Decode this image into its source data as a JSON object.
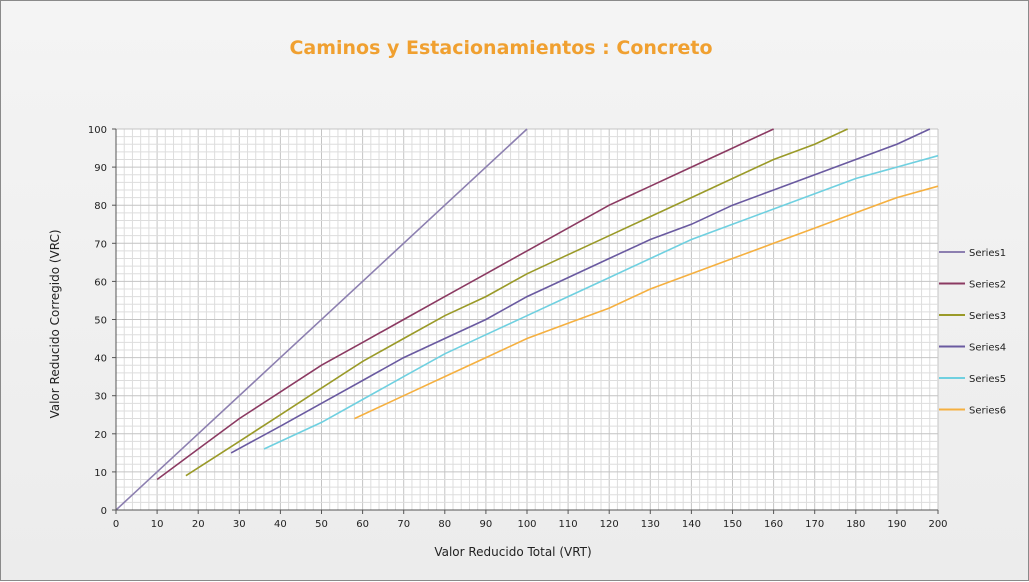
{
  "chart_data": {
    "type": "line",
    "title": "Caminos y Estacionamientos : Concreto",
    "xlabel": "Valor Reducido Total (VRT)",
    "ylabel": "Valor Reducido Corregido (VRC)",
    "xlim": [
      0,
      200
    ],
    "ylim": [
      0,
      100
    ],
    "x_ticks": [
      "0",
      "10",
      "20",
      "30",
      "40",
      "50",
      "60",
      "70",
      "80",
      "90",
      "100",
      "110",
      "120",
      "130",
      "140",
      "150",
      "160",
      "170",
      "180",
      "190",
      "200"
    ],
    "y_ticks": [
      "0",
      "10",
      "20",
      "30",
      "40",
      "50",
      "60",
      "70",
      "80",
      "90",
      "100"
    ],
    "grid": true,
    "minor_grid_step": 2,
    "legend_position": "right",
    "series": [
      {
        "name": "Series1",
        "color": "#8c7fb0",
        "points": [
          [
            0,
            0
          ],
          [
            20,
            20
          ],
          [
            40,
            40
          ],
          [
            60,
            60
          ],
          [
            80,
            80
          ],
          [
            100,
            100
          ]
        ]
      },
      {
        "name": "Series2",
        "color": "#8b3a62",
        "points": [
          [
            10,
            8
          ],
          [
            20,
            16
          ],
          [
            30,
            24
          ],
          [
            40,
            31
          ],
          [
            50,
            38
          ],
          [
            60,
            44
          ],
          [
            70,
            50
          ],
          [
            80,
            56
          ],
          [
            90,
            62
          ],
          [
            100,
            68
          ],
          [
            110,
            74
          ],
          [
            120,
            80
          ],
          [
            130,
            85
          ],
          [
            140,
            90
          ],
          [
            150,
            95
          ],
          [
            160,
            100
          ]
        ]
      },
      {
        "name": "Series3",
        "color": "#9a9a28",
        "points": [
          [
            17,
            9
          ],
          [
            30,
            18
          ],
          [
            40,
            25
          ],
          [
            50,
            32
          ],
          [
            60,
            39
          ],
          [
            70,
            45
          ],
          [
            80,
            51
          ],
          [
            90,
            56
          ],
          [
            100,
            62
          ],
          [
            110,
            67
          ],
          [
            120,
            72
          ],
          [
            130,
            77
          ],
          [
            140,
            82
          ],
          [
            150,
            87
          ],
          [
            160,
            92
          ],
          [
            170,
            96
          ],
          [
            178,
            100
          ]
        ]
      },
      {
        "name": "Series4",
        "color": "#6a5aa0",
        "points": [
          [
            28,
            15
          ],
          [
            40,
            22
          ],
          [
            50,
            28
          ],
          [
            60,
            34
          ],
          [
            70,
            40
          ],
          [
            80,
            45
          ],
          [
            90,
            50
          ],
          [
            100,
            56
          ],
          [
            110,
            61
          ],
          [
            120,
            66
          ],
          [
            130,
            71
          ],
          [
            140,
            75
          ],
          [
            150,
            80
          ],
          [
            160,
            84
          ],
          [
            170,
            88
          ],
          [
            180,
            92
          ],
          [
            190,
            96
          ],
          [
            198,
            100
          ]
        ]
      },
      {
        "name": "Series5",
        "color": "#6fd0e0",
        "points": [
          [
            36,
            16
          ],
          [
            50,
            23
          ],
          [
            60,
            29
          ],
          [
            70,
            35
          ],
          [
            80,
            41
          ],
          [
            90,
            46
          ],
          [
            100,
            51
          ],
          [
            110,
            56
          ],
          [
            120,
            61
          ],
          [
            130,
            66
          ],
          [
            140,
            71
          ],
          [
            150,
            75
          ],
          [
            160,
            79
          ],
          [
            170,
            83
          ],
          [
            180,
            87
          ],
          [
            190,
            90
          ],
          [
            200,
            93
          ]
        ]
      },
      {
        "name": "Series6",
        "color": "#f5b040",
        "points": [
          [
            58,
            24
          ],
          [
            70,
            30
          ],
          [
            80,
            35
          ],
          [
            90,
            40
          ],
          [
            100,
            45
          ],
          [
            110,
            49
          ],
          [
            120,
            53
          ],
          [
            130,
            58
          ],
          [
            140,
            62
          ],
          [
            150,
            66
          ],
          [
            160,
            70
          ],
          [
            170,
            74
          ],
          [
            180,
            78
          ],
          [
            190,
            82
          ],
          [
            200,
            85
          ]
        ]
      }
    ]
  }
}
